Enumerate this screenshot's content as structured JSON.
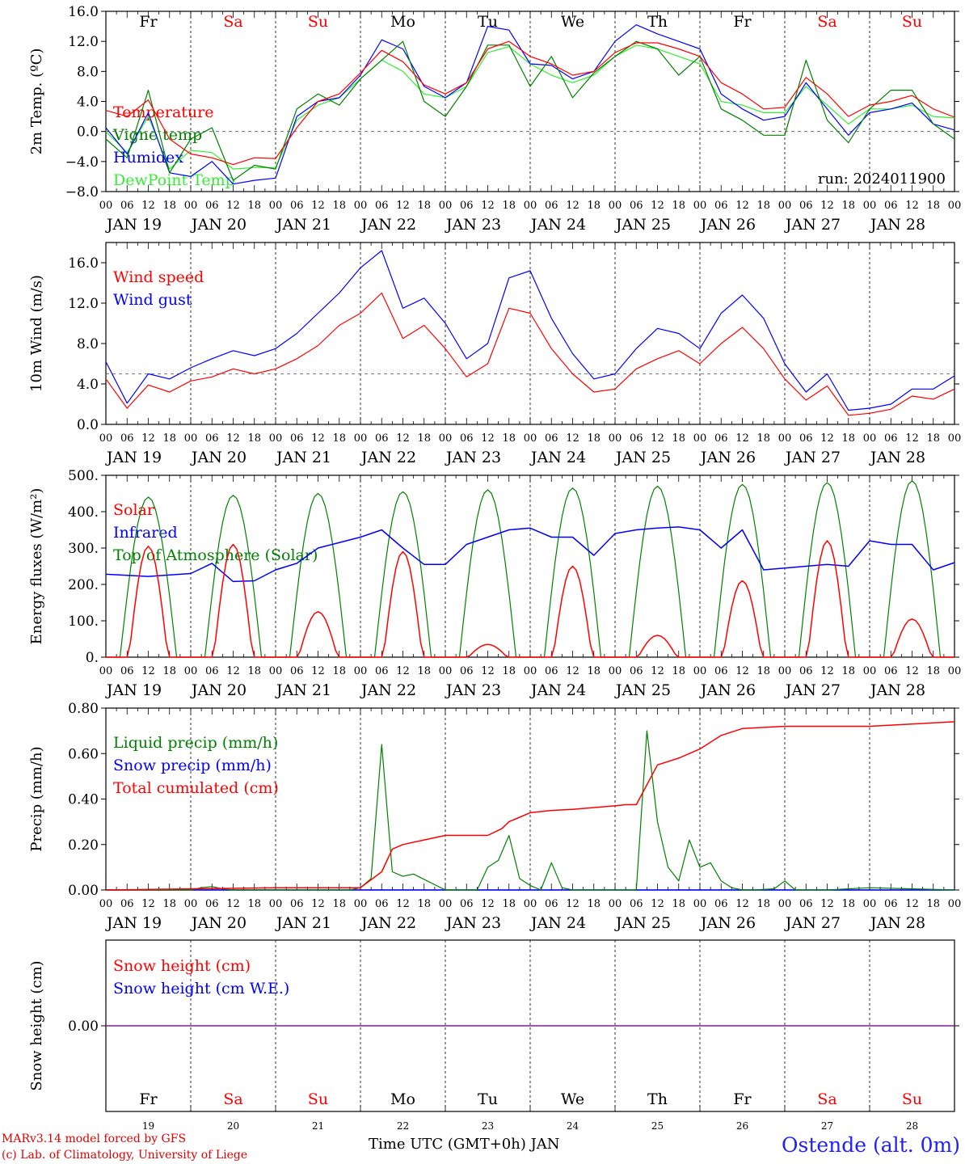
{
  "meta": {
    "run_label": "run: 2024011900",
    "credit_line_1": "MARv3.14 model forced by GFS",
    "credit_line_2": "(c) Lab. of Climatology, University of Liege",
    "station": "Ostende (alt. 0m)",
    "xlabel": "Time UTC (GMT+0h) JAN"
  },
  "days": {
    "weekday_labels": [
      "Fr",
      "Sa",
      "Su",
      "Mo",
      "Tu",
      "We",
      "Th",
      "Fr",
      "Sa",
      "Su"
    ],
    "weekend_flags": [
      false,
      true,
      true,
      false,
      false,
      false,
      false,
      false,
      true,
      true
    ],
    "date_labels": [
      "JAN 19",
      "JAN 20",
      "JAN 21",
      "JAN 22",
      "JAN 23",
      "JAN 24",
      "JAN 25",
      "JAN 26",
      "JAN 27",
      "JAN 28"
    ],
    "day_numbers": [
      "19",
      "20",
      "21",
      "22",
      "23",
      "24",
      "25",
      "26",
      "27",
      "28"
    ],
    "hour_ticks": [
      "00",
      "06",
      "12",
      "18"
    ],
    "final_tick": "00"
  },
  "colors": {
    "red": "#ff0000",
    "green": "#008000",
    "blue": "#0000ff",
    "lightgreen": "#33ee33",
    "purple": "#7a1fa0"
  },
  "chart_data": [
    {
      "type": "line",
      "ylabel": "2m Temp. (ºC)",
      "ylim": [
        -8,
        16
      ],
      "yticks": [
        "−8.0",
        "−4.0",
        "0.0",
        "4.0",
        "8.0",
        "12.0",
        "16.0"
      ],
      "ytick_values": [
        -8,
        -4,
        0,
        4,
        8,
        12,
        16
      ],
      "x_hours": [
        0,
        6,
        12,
        18,
        24,
        30,
        36,
        42,
        48,
        54,
        60,
        66,
        72,
        78,
        84,
        90,
        96,
        102,
        108,
        114,
        120,
        126,
        132,
        138,
        144,
        150,
        156,
        162,
        168,
        174,
        180,
        186,
        192,
        198,
        204,
        210,
        216,
        222,
        228,
        234,
        240
      ],
      "series": [
        {
          "name": "Temperature",
          "color": "red",
          "values": [
            2.8,
            2.0,
            4.2,
            -1.0,
            -3.0,
            -3.5,
            -4.4,
            -3.5,
            -3.6,
            0.5,
            4.0,
            5.0,
            7.8,
            10.8,
            9.3,
            6.2,
            5.0,
            6.5,
            11.0,
            12.0,
            10.0,
            9.0,
            7.5,
            8.0,
            10.5,
            11.8,
            11.8,
            11.0,
            10.0,
            6.5,
            5.0,
            3.0,
            3.2,
            7.2,
            5.0,
            2.0,
            3.5,
            4.0,
            4.8,
            3.0,
            1.9
          ]
        },
        {
          "name": "Vigne temp",
          "color": "green",
          "values": [
            -1.0,
            -3.5,
            5.5,
            -5.5,
            -1.0,
            0.5,
            -6.5,
            -4.5,
            -5.0,
            3.0,
            5.0,
            3.5,
            7.0,
            9.5,
            12.0,
            4.0,
            2.0,
            6.0,
            11.5,
            11.5,
            6.0,
            10.0,
            4.5,
            7.8,
            10.0,
            12.0,
            11.0,
            7.5,
            10.0,
            3.0,
            1.5,
            -0.5,
            -0.5,
            9.5,
            1.5,
            -1.5,
            3.0,
            5.5,
            5.5,
            1.0,
            -1.0
          ]
        },
        {
          "name": "Humidex",
          "color": "blue",
          "values": [
            0.5,
            -3.0,
            2.5,
            -5.5,
            -6.0,
            -4.0,
            -7.0,
            -6.5,
            -6.2,
            2.0,
            4.0,
            4.5,
            7.5,
            12.2,
            11.0,
            6.0,
            4.5,
            6.5,
            14.0,
            13.5,
            9.0,
            8.8,
            7.0,
            8.0,
            12.0,
            14.2,
            13.0,
            12.0,
            11.0,
            5.0,
            3.0,
            1.5,
            2.0,
            6.5,
            3.0,
            -0.5,
            2.5,
            3.0,
            3.8,
            1.0,
            0.2
          ]
        },
        {
          "name": "DewPoint Temp",
          "color": "lightgreen",
          "values": [
            0.0,
            -2.8,
            2.0,
            -5.0,
            -2.5,
            -2.8,
            -5.0,
            -4.8,
            -4.8,
            1.5,
            3.5,
            4.5,
            7.0,
            9.5,
            8.0,
            5.0,
            4.5,
            6.0,
            10.5,
            11.3,
            9.0,
            7.5,
            6.5,
            7.5,
            10.0,
            11.5,
            11.0,
            10.0,
            9.0,
            4.0,
            3.5,
            2.5,
            2.5,
            6.0,
            3.5,
            1.0,
            3.0,
            3.0,
            3.5,
            2.0,
            1.8
          ]
        }
      ],
      "hline": 0,
      "legend_placement": "left",
      "grid": "day separators dashed"
    },
    {
      "type": "line",
      "ylabel": "10m Wind (m/s)",
      "ylim": [
        0,
        18
      ],
      "yticks": [
        "0.0",
        "4.0",
        "8.0",
        "12.0",
        "16.0"
      ],
      "ytick_values": [
        0,
        4,
        8,
        12,
        16
      ],
      "x_hours": [
        0,
        6,
        12,
        18,
        24,
        30,
        36,
        42,
        48,
        54,
        60,
        66,
        72,
        78,
        84,
        90,
        96,
        102,
        108,
        114,
        120,
        126,
        132,
        138,
        144,
        150,
        156,
        162,
        168,
        174,
        180,
        186,
        192,
        198,
        204,
        210,
        216,
        222,
        228,
        234,
        240
      ],
      "series": [
        {
          "name": "Wind speed",
          "color": "red",
          "values": [
            4.5,
            1.6,
            3.9,
            3.2,
            4.3,
            4.7,
            5.5,
            5.0,
            5.5,
            6.5,
            7.8,
            9.8,
            11.0,
            13.0,
            8.5,
            9.8,
            7.5,
            4.7,
            6.0,
            11.5,
            11.0,
            7.5,
            5.0,
            3.2,
            3.5,
            5.5,
            6.5,
            7.3,
            6.0,
            8.0,
            9.6,
            7.5,
            4.5,
            2.4,
            3.8,
            0.9,
            1.1,
            1.5,
            2.8,
            2.5,
            3.5
          ]
        },
        {
          "name": "Wind gust",
          "color": "blue",
          "values": [
            6.2,
            2.1,
            5.0,
            4.5,
            5.6,
            6.5,
            7.3,
            6.8,
            7.5,
            9.0,
            11.0,
            13.0,
            15.5,
            17.2,
            11.5,
            12.5,
            10.0,
            6.5,
            8.0,
            14.5,
            15.2,
            10.5,
            7.0,
            4.5,
            5.0,
            7.5,
            9.5,
            9.0,
            7.5,
            11.0,
            12.8,
            10.5,
            6.0,
            3.2,
            5.0,
            1.4,
            1.6,
            2.0,
            3.5,
            3.5,
            4.8
          ]
        }
      ],
      "hline": 5,
      "legend_placement": "left"
    },
    {
      "type": "line",
      "ylabel": "Energy fluxes (W/m²)",
      "ylim": [
        0,
        500
      ],
      "yticks": [
        "0.",
        "100.",
        "200.",
        "300.",
        "400.",
        "500."
      ],
      "ytick_values": [
        0,
        100,
        200,
        300,
        400,
        500
      ],
      "series": [
        {
          "name": "Solar",
          "color": "red",
          "peaks": [
            305,
            310,
            125,
            290,
            35,
            250,
            60,
            210,
            320,
            105
          ]
        },
        {
          "name": "Infrared",
          "color": "blue",
          "x_hours": [
            0,
            12,
            24,
            30,
            36,
            42,
            48,
            54,
            60,
            72,
            78,
            84,
            90,
            96,
            102,
            108,
            114,
            120,
            126,
            132,
            138,
            144,
            150,
            156,
            162,
            168,
            174,
            180,
            186,
            192,
            198,
            204,
            210,
            216,
            222,
            228,
            234,
            240
          ],
          "values": [
            228,
            222,
            230,
            258,
            208,
            210,
            240,
            258,
            300,
            330,
            350,
            300,
            255,
            255,
            310,
            330,
            350,
            355,
            330,
            330,
            280,
            340,
            350,
            355,
            358,
            350,
            300,
            350,
            240,
            245,
            250,
            255,
            250,
            320,
            310,
            310,
            240,
            260
          ]
        },
        {
          "name": "Top of Atmosphere (Solar)",
          "color": "green",
          "peaks": [
            440,
            445,
            450,
            455,
            460,
            465,
            470,
            475,
            480,
            485
          ]
        }
      ],
      "legend_placement": "left"
    },
    {
      "type": "line",
      "ylabel": "Precip (mm/h)",
      "ylim": [
        0,
        0.8
      ],
      "yticks": [
        "0.00",
        "0.20",
        "0.40",
        "0.60",
        "0.80"
      ],
      "ytick_values": [
        0,
        0.2,
        0.4,
        0.6,
        0.8
      ],
      "series": [
        {
          "name": "Liquid precip (mm/h)",
          "color": "green",
          "x_hours": [
            0,
            24,
            27,
            30,
            33,
            36,
            60,
            69,
            72,
            75,
            78,
            81,
            84,
            87,
            96,
            105,
            108,
            111,
            114,
            117,
            120,
            123,
            126,
            129,
            132,
            150,
            153,
            156,
            159,
            162,
            165,
            168,
            171,
            174,
            177,
            180,
            183,
            189,
            192,
            195,
            198,
            201,
            204,
            216,
            228,
            240
          ],
          "values": [
            0,
            0,
            0.01,
            0.015,
            0.005,
            0,
            0,
            0,
            0.01,
            0.05,
            0.64,
            0.08,
            0.06,
            0.07,
            0,
            0,
            0.1,
            0.13,
            0.24,
            0.05,
            0.02,
            0,
            0.12,
            0.01,
            0,
            0,
            0.7,
            0.3,
            0.1,
            0.04,
            0.22,
            0.1,
            0.12,
            0.04,
            0.01,
            0,
            0,
            0.005,
            0.04,
            0,
            0,
            0,
            0,
            0.01,
            0.005,
            0
          ]
        },
        {
          "name": "Snow precip (mm/h)",
          "color": "blue",
          "values": [
            0
          ]
        },
        {
          "name": "Total cumulated (cm)",
          "color": "red",
          "x_hours": [
            0,
            24,
            48,
            72,
            78,
            81,
            84,
            90,
            96,
            102,
            108,
            112,
            114,
            120,
            126,
            132,
            144,
            147,
            150,
            156,
            162,
            168,
            174,
            180,
            186,
            192,
            204,
            216,
            240
          ],
          "values": [
            0,
            0.005,
            0.01,
            0.01,
            0.08,
            0.18,
            0.2,
            0.22,
            0.24,
            0.24,
            0.24,
            0.27,
            0.3,
            0.34,
            0.35,
            0.355,
            0.37,
            0.375,
            0.375,
            0.55,
            0.58,
            0.62,
            0.68,
            0.71,
            0.715,
            0.72,
            0.72,
            0.72,
            0.74
          ]
        }
      ],
      "legend_placement": "left"
    },
    {
      "type": "line",
      "ylabel": "Snow height (cm)",
      "yticks": [
        "0.00"
      ],
      "ytick_values": [
        0
      ],
      "series": [
        {
          "name": "Snow height (cm)",
          "color": "red",
          "values": [
            0
          ]
        },
        {
          "name": "Snow height (cm W.E.)",
          "color": "blue",
          "values": [
            0
          ]
        }
      ],
      "legend_placement": "left"
    }
  ]
}
